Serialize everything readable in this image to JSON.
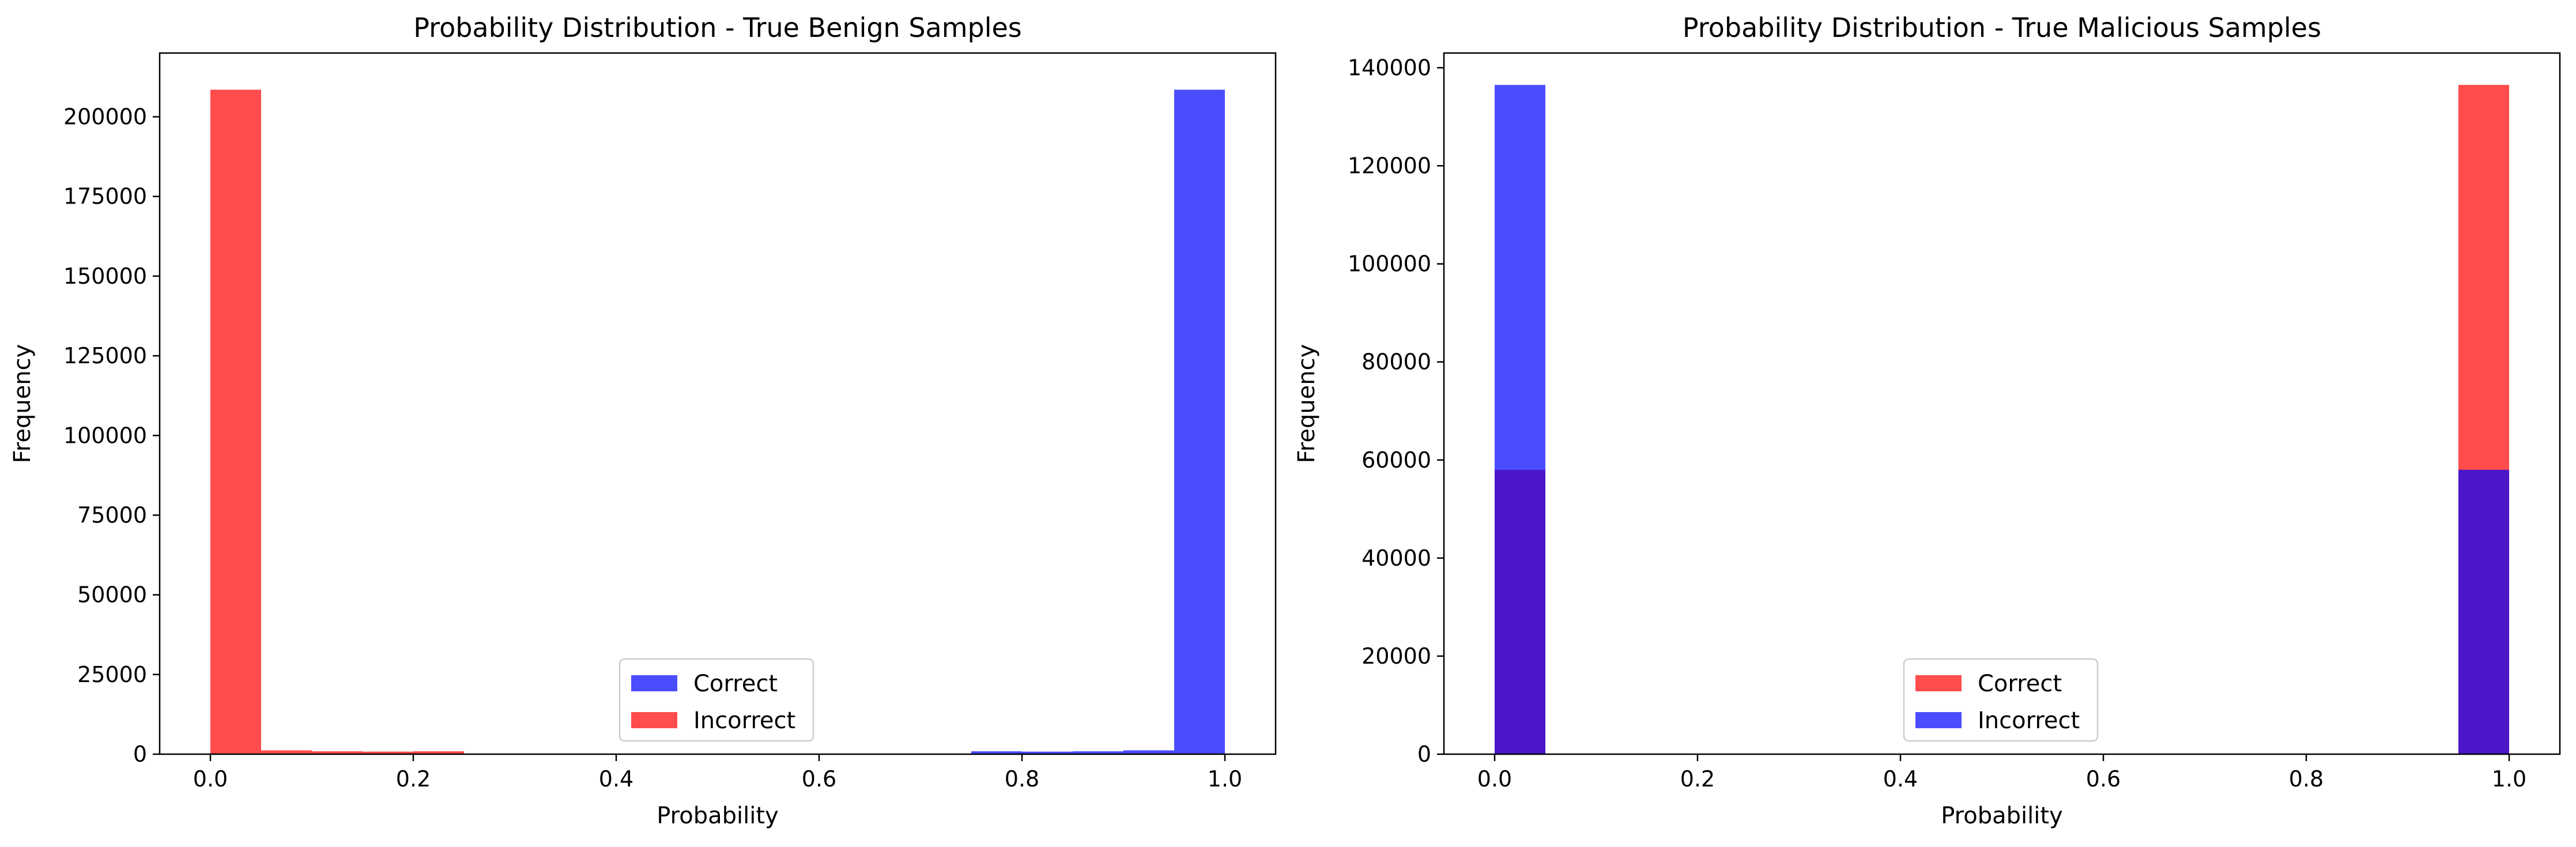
{
  "colors": {
    "blue": "#0000ff",
    "red": "#ff0000",
    "bar_alpha": 0.7
  },
  "chart_data": [
    {
      "type": "bar",
      "title": "Probability Distribution - True Benign Samples",
      "xlabel": "Probability",
      "ylabel": "Frequency",
      "xlim": [
        -0.05,
        1.05
      ],
      "ylim": [
        0,
        220000
      ],
      "xticks": [
        0.0,
        0.2,
        0.4,
        0.6,
        0.8,
        1.0
      ],
      "xtick_labels": [
        "0.0",
        "0.2",
        "0.4",
        "0.6",
        "0.8",
        "1.0"
      ],
      "yticks": [
        0,
        25000,
        50000,
        75000,
        100000,
        125000,
        150000,
        175000,
        200000
      ],
      "ytick_labels": [
        "0",
        "25000",
        "50000",
        "75000",
        "100000",
        "125000",
        "150000",
        "175000",
        "200000"
      ],
      "bin_edges": [
        0.0,
        0.05,
        0.1,
        0.15,
        0.2,
        0.25,
        0.3,
        0.35,
        0.4,
        0.45,
        0.5,
        0.55,
        0.6,
        0.65,
        0.7,
        0.75,
        0.8,
        0.85,
        0.9,
        0.95,
        1.0
      ],
      "legend_position": "lower center",
      "series": [
        {
          "name": "Correct",
          "color": "#0000ff",
          "values": [
            0,
            0,
            0,
            0,
            0,
            0,
            0,
            0,
            0,
            0,
            0,
            0,
            0,
            0,
            0,
            900,
            800,
            900,
            1200,
            208500
          ]
        },
        {
          "name": "Incorrect",
          "color": "#ff0000",
          "values": [
            208500,
            1200,
            900,
            800,
            900,
            0,
            0,
            0,
            0,
            0,
            0,
            0,
            0,
            0,
            0,
            0,
            0,
            0,
            0,
            0
          ]
        }
      ]
    },
    {
      "type": "bar",
      "title": "Probability Distribution - True Malicious Samples",
      "xlabel": "Probability",
      "ylabel": "Frequency",
      "xlim": [
        -0.05,
        1.05
      ],
      "ylim": [
        0,
        143000
      ],
      "xticks": [
        0.0,
        0.2,
        0.4,
        0.6,
        0.8,
        1.0
      ],
      "xtick_labels": [
        "0.0",
        "0.2",
        "0.4",
        "0.6",
        "0.8",
        "1.0"
      ],
      "yticks": [
        0,
        20000,
        40000,
        60000,
        80000,
        100000,
        120000,
        140000
      ],
      "ytick_labels": [
        "0",
        "20000",
        "40000",
        "60000",
        "80000",
        "100000",
        "120000",
        "140000"
      ],
      "bin_edges": [
        0.0,
        0.05,
        0.1,
        0.15,
        0.2,
        0.25,
        0.3,
        0.35,
        0.4,
        0.45,
        0.5,
        0.55,
        0.6,
        0.65,
        0.7,
        0.75,
        0.8,
        0.85,
        0.9,
        0.95,
        1.0
      ],
      "legend_position": "lower center",
      "series": [
        {
          "name": "Correct",
          "color": "#ff0000",
          "values": [
            58000,
            0,
            0,
            0,
            0,
            0,
            0,
            0,
            0,
            0,
            0,
            0,
            0,
            0,
            0,
            0,
            0,
            0,
            0,
            136500
          ]
        },
        {
          "name": "Incorrect",
          "color": "#0000ff",
          "values": [
            136500,
            0,
            0,
            0,
            0,
            0,
            0,
            0,
            0,
            0,
            0,
            0,
            0,
            0,
            0,
            0,
            0,
            0,
            0,
            58000
          ]
        }
      ]
    }
  ]
}
